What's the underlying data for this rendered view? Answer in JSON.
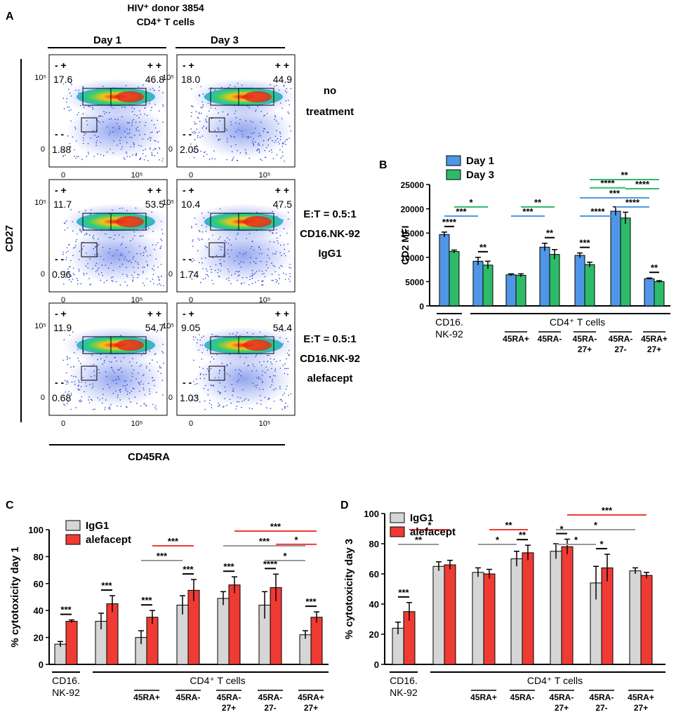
{
  "colors": {
    "day1": "#4f97e6",
    "day3": "#2dbb6a",
    "igg1": "#d6d6d6",
    "alefacept": "#f03a34",
    "sig_blue": "#4f97e6",
    "sig_green": "#2dbb6a",
    "sig_grey": "#999999",
    "sig_red": "#f03a34"
  },
  "panel_a": {
    "letter": "A",
    "title_line1": "HIV⁺ donor 3854",
    "title_line2": "CD4⁺ T cells",
    "col_headers": [
      "Day 1",
      "Day 3"
    ],
    "y_axis_label": "CD27",
    "x_axis_label": "CD45RA",
    "y_tick_top": "10⁵",
    "y_tick_zero": "0",
    "x_tick_zero": "0",
    "x_tick_right": "10⁵",
    "quad_minus_plus": "- +",
    "quad_plus_plus": "+ +",
    "quad_minus_minus": "- -",
    "rows": [
      {
        "label_lines": [
          "no",
          "treatment"
        ],
        "plots": [
          {
            "tl": "17.6",
            "tr": "46.8",
            "bl": "1.88"
          },
          {
            "tl": "18.0",
            "tr": "44.9",
            "bl": "2.05"
          }
        ]
      },
      {
        "label_lines": [
          "E:T = 0.5:1",
          "CD16.NK-92",
          "IgG1"
        ],
        "plots": [
          {
            "tl": "11.7",
            "tr": "53.5",
            "bl": "0.96"
          },
          {
            "tl": "10.4",
            "tr": "47.5",
            "bl": "1.74"
          }
        ]
      },
      {
        "label_lines": [
          "E:T = 0.5:1",
          "CD16.NK-92",
          "alefacept"
        ],
        "plots": [
          {
            "tl": "11.9",
            "tr": "54.7",
            "bl": "0.68"
          },
          {
            "tl": "9.05",
            "tr": "54.4",
            "bl": "1.03"
          }
        ]
      }
    ]
  },
  "chart_data": [
    {
      "panel": "B",
      "type": "bar",
      "ylabel": "CD2 MFI",
      "ylim": [
        0,
        25000
      ],
      "yticks": [
        "0",
        "5000",
        "10000",
        "15000",
        "20000",
        "25000"
      ],
      "legend": [
        "Day 1",
        "Day 3"
      ],
      "categories": [
        "CD16.NK-92",
        "CD4 T cells",
        "45RA+",
        "45RA-",
        "45RA-27+",
        "45RA-27-",
        "45RA+27+"
      ],
      "series": [
        {
          "name": "Day 1",
          "values": [
            14700,
            9200,
            6400,
            12100,
            10400,
            19500,
            5600
          ],
          "errors": [
            500,
            800,
            200,
            800,
            500,
            900,
            150
          ]
        },
        {
          "name": "Day 3",
          "values": [
            11200,
            8400,
            6300,
            10600,
            8500,
            18100,
            5000
          ],
          "errors": [
            300,
            800,
            300,
            1000,
            500,
            1200,
            200
          ]
        }
      ],
      "group_labels": [
        {
          "lines": [
            "CD16.",
            "NK-92"
          ]
        },
        {
          "lines": [
            "45RA+"
          ]
        },
        {
          "lines": [
            "45RA-"
          ]
        },
        {
          "lines": [
            "45RA-",
            "27+"
          ]
        },
        {
          "lines": [
            "45RA-",
            "27-"
          ]
        },
        {
          "lines": [
            "45RA+",
            "27+"
          ]
        }
      ],
      "bracket_label": "CD4⁺ T cells",
      "significance": [
        {
          "stars": "****",
          "a": "0.0",
          "b": "0.1",
          "level": 0,
          "color": "black"
        },
        {
          "stars": "**",
          "a": "1.0",
          "b": "1.1",
          "level": 0,
          "color": "black"
        },
        {
          "stars": "**",
          "a": "3.0",
          "b": "3.1",
          "level": 0,
          "color": "black"
        },
        {
          "stars": "***",
          "a": "4.0",
          "b": "4.1",
          "level": 0,
          "color": "black"
        },
        {
          "stars": "**",
          "a": "6.0",
          "b": "6.1",
          "level": 0,
          "color": "black"
        },
        {
          "stars": "***",
          "a": "0.0",
          "b": "1.0",
          "level": 1,
          "color": "blue"
        },
        {
          "stars": "*",
          "a": "0.1",
          "b": "1.1",
          "level": 2,
          "color": "green"
        },
        {
          "stars": "***",
          "a": "2.0",
          "b": "3.0",
          "level": 1,
          "color": "blue"
        },
        {
          "stars": "**",
          "a": "2.1",
          "b": "3.1",
          "level": 2,
          "color": "green"
        },
        {
          "stars": "****",
          "a": "4.0",
          "b": "5.0",
          "level": 1,
          "color": "blue"
        },
        {
          "stars": "****",
          "a": "5.0",
          "b": "6.0",
          "level": 2,
          "color": "blue"
        },
        {
          "stars": "***",
          "a": "4.0",
          "b": "6.0",
          "level": 3,
          "color": "blue"
        },
        {
          "stars": "****",
          "a": "5.1",
          "b": "6.1",
          "level": 4,
          "color": "green"
        },
        {
          "stars": "****",
          "a": "4.1",
          "b": "5.1",
          "level": 4.1,
          "color": "green"
        },
        {
          "stars": "**",
          "a": "4.1",
          "b": "6.1",
          "level": 5,
          "color": "green"
        }
      ]
    },
    {
      "panel": "C",
      "type": "bar",
      "ylabel": "% cytotoxicity day 1",
      "ylim": [
        0,
        100
      ],
      "yticks": [
        "0",
        "20",
        "40",
        "60",
        "80",
        "100"
      ],
      "legend": [
        "IgG1",
        "alefacept"
      ],
      "categories": [
        "CD16.NK-92",
        "CD4 T cells",
        "45RA+",
        "45RA-",
        "45RA-27+",
        "45RA-27-",
        "45RA+27+"
      ],
      "series": [
        {
          "name": "IgG1",
          "values": [
            15,
            32,
            20,
            44,
            49,
            44,
            22
          ],
          "errors": [
            2,
            6,
            5,
            7,
            5,
            10,
            3
          ]
        },
        {
          "name": "alefacept",
          "values": [
            32,
            45,
            35,
            55,
            59,
            57,
            35
          ],
          "errors": [
            1,
            6,
            5,
            8,
            6,
            10,
            4
          ]
        }
      ],
      "group_labels": [
        {
          "lines": [
            "CD16.",
            "NK-92"
          ]
        },
        {
          "lines": [
            "45RA+"
          ]
        },
        {
          "lines": [
            "45RA-"
          ]
        },
        {
          "lines": [
            "45RA-",
            "27+"
          ]
        },
        {
          "lines": [
            "45RA-",
            "27-"
          ]
        },
        {
          "lines": [
            "45RA+",
            "27+"
          ]
        }
      ],
      "bracket_label": "CD4⁺ T cells",
      "significance": [
        {
          "stars": "***",
          "a": "0.0",
          "b": "0.1",
          "level": 0,
          "color": "black"
        },
        {
          "stars": "***",
          "a": "1.0",
          "b": "1.1",
          "level": 0,
          "color": "black"
        },
        {
          "stars": "***",
          "a": "2.0",
          "b": "2.1",
          "level": 0,
          "color": "black"
        },
        {
          "stars": "***",
          "a": "3.0",
          "b": "3.1",
          "level": 0,
          "color": "black"
        },
        {
          "stars": "***",
          "a": "4.0",
          "b": "4.1",
          "level": 0,
          "color": "black"
        },
        {
          "stars": "****",
          "a": "5.0",
          "b": "5.1",
          "level": 0,
          "color": "black"
        },
        {
          "stars": "***",
          "a": "6.0",
          "b": "6.1",
          "level": 0,
          "color": "black"
        },
        {
          "stars": "***",
          "a": "2.0",
          "b": "3.0",
          "level": 1,
          "color": "grey"
        },
        {
          "stars": "***",
          "a": "2.1",
          "b": "3.1",
          "level": 2,
          "color": "red"
        },
        {
          "stars": "*",
          "a": "5.0",
          "b": "6.0",
          "level": 1,
          "color": "grey"
        },
        {
          "stars": "***",
          "a": "4.0",
          "b": "6.0",
          "level": 2,
          "color": "grey"
        },
        {
          "stars": "*",
          "a": "5.1",
          "b": "6.1",
          "level": 2.1,
          "color": "red"
        },
        {
          "stars": "***",
          "a": "4.1",
          "b": "6.1",
          "level": 3,
          "color": "red"
        }
      ]
    },
    {
      "panel": "D",
      "type": "bar",
      "ylabel": "% cytotoxicity day 3",
      "ylim": [
        0,
        100
      ],
      "yticks": [
        "0",
        "20",
        "40",
        "60",
        "80",
        "100"
      ],
      "legend": [
        "IgG1",
        "alefacept"
      ],
      "categories": [
        "CD16.NK-92",
        "CD4 T cells",
        "45RA+",
        "45RA-",
        "45RA-27+",
        "45RA-27-",
        "45RA+27+"
      ],
      "series": [
        {
          "name": "IgG1",
          "values": [
            24,
            65,
            61,
            70,
            75,
            54,
            62
          ],
          "errors": [
            4,
            3,
            3,
            5,
            5,
            11,
            2
          ]
        },
        {
          "name": "alefacept",
          "values": [
            35,
            66,
            60,
            74,
            78,
            64,
            59
          ],
          "errors": [
            6,
            3,
            3,
            5,
            5,
            9,
            2
          ]
        }
      ],
      "group_labels": [
        {
          "lines": [
            "CD16.",
            "NK-92"
          ]
        },
        {
          "lines": [
            "45RA+"
          ]
        },
        {
          "lines": [
            "45RA-"
          ]
        },
        {
          "lines": [
            "45RA-",
            "27+"
          ]
        },
        {
          "lines": [
            "45RA-",
            "27-"
          ]
        },
        {
          "lines": [
            "45RA+",
            "27+"
          ]
        }
      ],
      "bracket_label": "CD4⁺ T cells",
      "significance": [
        {
          "stars": "***",
          "a": "0.0",
          "b": "0.1",
          "level": 0,
          "color": "black"
        },
        {
          "stars": "**",
          "a": "3.0",
          "b": "3.1",
          "level": 0,
          "color": "black"
        },
        {
          "stars": "*",
          "a": "4.0",
          "b": "4.1",
          "level": 0,
          "color": "black"
        },
        {
          "stars": "*",
          "a": "5.0",
          "b": "5.1",
          "level": 0,
          "color": "black"
        },
        {
          "stars": "**",
          "a": "0.0",
          "b": "1.0",
          "level": 1,
          "color": "grey"
        },
        {
          "stars": "*",
          "a": "0.1",
          "b": "1.1",
          "level": 2,
          "color": "red"
        },
        {
          "stars": "*",
          "a": "2.0",
          "b": "3.0",
          "level": 1,
          "color": "grey"
        },
        {
          "stars": "**",
          "a": "2.1",
          "b": "3.1",
          "level": 2,
          "color": "red"
        },
        {
          "stars": "*",
          "a": "4.0",
          "b": "5.0",
          "level": 1,
          "color": "grey"
        },
        {
          "stars": "*",
          "a": "4.0",
          "b": "6.0",
          "level": 2,
          "color": "grey"
        },
        {
          "stars": "***",
          "a": "4.1",
          "b": "6.1",
          "level": 3,
          "color": "red"
        }
      ]
    }
  ]
}
